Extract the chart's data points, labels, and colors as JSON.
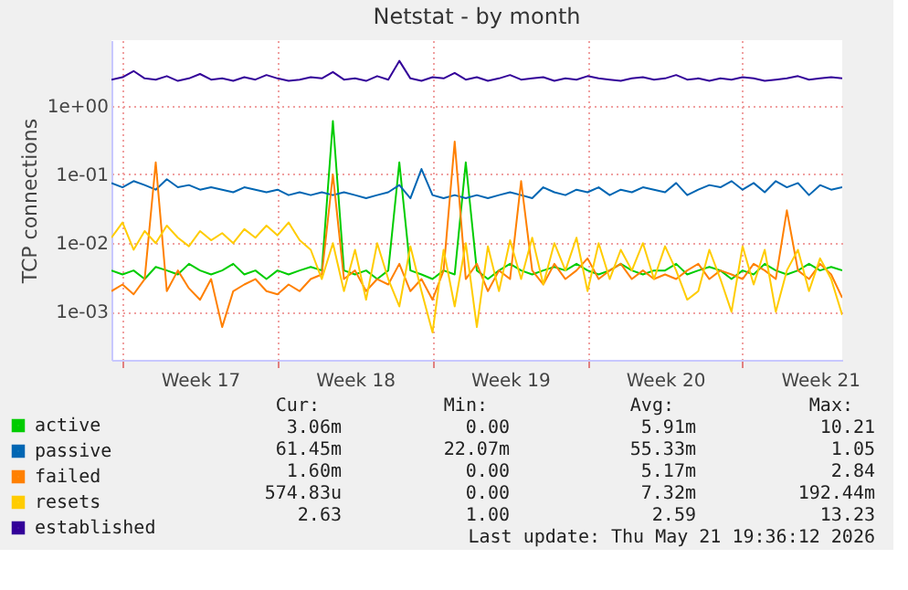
{
  "chart_data": {
    "type": "line",
    "title": "Netstat - by month",
    "ylabel": "TCP connections",
    "log": true,
    "grid": true,
    "legend": "bottom",
    "line_style": "solid",
    "marker": "none",
    "x": [
      "2026-04-19T12:00",
      "2026-04-20T00:00",
      "2026-04-20T12:00",
      "2026-04-21T00:00",
      "2026-04-21T12:00",
      "2026-04-22T00:00",
      "2026-04-22T12:00",
      "2026-04-23T00:00",
      "2026-04-23T12:00",
      "2026-04-24T00:00",
      "2026-04-24T12:00",
      "2026-04-25T00:00",
      "2026-04-25T12:00",
      "2026-04-26T00:00",
      "2026-04-26T12:00",
      "2026-04-27T00:00",
      "2026-04-27T12:00",
      "2026-04-28T00:00",
      "2026-04-28T12:00",
      "2026-04-29T00:00",
      "2026-04-29T12:00",
      "2026-04-30T00:00",
      "2026-04-30T12:00",
      "2026-05-01T00:00",
      "2026-05-01T12:00",
      "2026-05-02T00:00",
      "2026-05-02T12:00",
      "2026-05-03T00:00",
      "2026-05-03T12:00",
      "2026-05-04T00:00",
      "2026-05-04T12:00",
      "2026-05-05T00:00",
      "2026-05-05T12:00",
      "2026-05-06T00:00",
      "2026-05-06T12:00",
      "2026-05-07T00:00",
      "2026-05-07T12:00",
      "2026-05-08T00:00",
      "2026-05-08T12:00",
      "2026-05-09T00:00",
      "2026-05-09T12:00",
      "2026-05-10T00:00",
      "2026-05-10T12:00",
      "2026-05-11T00:00",
      "2026-05-11T12:00",
      "2026-05-12T00:00",
      "2026-05-12T12:00",
      "2026-05-13T00:00",
      "2026-05-13T12:00",
      "2026-05-14T00:00",
      "2026-05-14T12:00",
      "2026-05-15T00:00",
      "2026-05-15T12:00",
      "2026-05-16T00:00",
      "2026-05-16T12:00",
      "2026-05-17T00:00",
      "2026-05-17T12:00",
      "2026-05-18T00:00",
      "2026-05-18T12:00",
      "2026-05-19T00:00",
      "2026-05-19T12:00",
      "2026-05-20T00:00",
      "2026-05-20T12:00",
      "2026-05-21T00:00",
      "2026-05-21T12:00",
      "2026-05-22T00:00",
      "2026-05-22T12:00"
    ],
    "xlim": [
      "2026-04-19T12:00",
      "2026-05-22T12:00"
    ],
    "xticks": [
      {
        "value": "2026-04-20T00:00",
        "label": null
      },
      {
        "value": "2026-04-23T12:00",
        "label": "Week 17"
      },
      {
        "value": "2026-04-27T00:00",
        "label": null
      },
      {
        "value": "2026-04-30T12:00",
        "label": "Week 18"
      },
      {
        "value": "2026-05-04T00:00",
        "label": null
      },
      {
        "value": "2026-05-07T12:00",
        "label": "Week 19"
      },
      {
        "value": "2026-05-11T00:00",
        "label": null
      },
      {
        "value": "2026-05-14T12:00",
        "label": "Week 20"
      },
      {
        "value": "2026-05-18T00:00",
        "label": null
      },
      {
        "value": "2026-05-21T12:00",
        "label": "Week 21"
      }
    ],
    "ylim": [
      0.0002,
      9
    ],
    "yticks": [
      {
        "value": 0.001,
        "label": "1e-03"
      },
      {
        "value": 0.01,
        "label": "1e-02"
      },
      {
        "value": 0.1,
        "label": "1e-01"
      },
      {
        "value": 1,
        "label": "1e+00"
      }
    ],
    "series": [
      {
        "name": "active",
        "color": "#00cc00",
        "values": [
          0.004,
          0.0035,
          0.004,
          0.003,
          0.0045,
          0.004,
          0.0035,
          0.005,
          0.004,
          0.0035,
          0.004,
          0.005,
          0.0035,
          0.004,
          0.003,
          0.004,
          0.0035,
          0.004,
          0.0045,
          0.004,
          0.6,
          0.004,
          0.0035,
          0.004,
          0.003,
          0.004,
          0.15,
          0.004,
          0.0035,
          0.003,
          0.004,
          0.0035,
          0.15,
          0.004,
          0.003,
          0.004,
          0.005,
          0.004,
          0.0035,
          0.004,
          0.0045,
          0.004,
          0.005,
          0.004,
          0.0035,
          0.004,
          0.005,
          0.004,
          0.0035,
          0.004,
          0.004,
          0.005,
          0.0035,
          0.004,
          0.0045,
          0.004,
          0.003,
          0.004,
          0.0035,
          0.005,
          0.004,
          0.0035,
          0.004,
          0.005,
          0.004,
          0.0045,
          0.004
        ]
      },
      {
        "name": "passive",
        "color": "#0066b3",
        "values": [
          0.075,
          0.065,
          0.08,
          0.07,
          0.06,
          0.085,
          0.065,
          0.07,
          0.06,
          0.065,
          0.06,
          0.055,
          0.065,
          0.06,
          0.055,
          0.06,
          0.05,
          0.055,
          0.05,
          0.055,
          0.05,
          0.055,
          0.05,
          0.045,
          0.05,
          0.055,
          0.07,
          0.045,
          0.12,
          0.05,
          0.045,
          0.05,
          0.045,
          0.05,
          0.045,
          0.05,
          0.055,
          0.05,
          0.045,
          0.065,
          0.055,
          0.05,
          0.06,
          0.055,
          0.065,
          0.05,
          0.06,
          0.055,
          0.065,
          0.06,
          0.055,
          0.075,
          0.05,
          0.06,
          0.07,
          0.065,
          0.08,
          0.06,
          0.075,
          0.055,
          0.08,
          0.065,
          0.075,
          0.05,
          0.07,
          0.06,
          0.065
        ]
      },
      {
        "name": "failed",
        "color": "#ff8000",
        "values": [
          0.002,
          0.0025,
          0.0018,
          0.003,
          0.15,
          0.002,
          0.004,
          0.0022,
          0.0015,
          0.003,
          0.0006,
          0.002,
          0.0025,
          0.003,
          0.002,
          0.0018,
          0.0025,
          0.002,
          0.003,
          0.0035,
          0.1,
          0.003,
          0.004,
          0.002,
          0.003,
          0.0025,
          0.005,
          0.002,
          0.003,
          0.0015,
          0.004,
          0.3,
          0.003,
          0.005,
          0.002,
          0.004,
          0.003,
          0.08,
          0.004,
          0.0025,
          0.005,
          0.003,
          0.004,
          0.006,
          0.003,
          0.004,
          0.005,
          0.003,
          0.004,
          0.003,
          0.0035,
          0.003,
          0.004,
          0.005,
          0.003,
          0.004,
          0.0035,
          0.003,
          0.005,
          0.004,
          0.003,
          0.03,
          0.004,
          0.003,
          0.005,
          0.0035,
          0.0016
        ]
      },
      {
        "name": "resets",
        "color": "#ffcc00",
        "values": [
          0.012,
          0.02,
          0.008,
          0.015,
          0.01,
          0.018,
          0.012,
          0.009,
          0.015,
          0.011,
          0.014,
          0.01,
          0.016,
          0.012,
          0.018,
          0.013,
          0.02,
          0.011,
          0.008,
          0.003,
          0.01,
          0.002,
          0.008,
          0.0015,
          0.01,
          0.003,
          0.0012,
          0.009,
          0.002,
          0.0005,
          0.008,
          0.0012,
          0.01,
          0.0006,
          0.009,
          0.002,
          0.011,
          0.003,
          0.012,
          0.0025,
          0.01,
          0.004,
          0.012,
          0.002,
          0.01,
          0.003,
          0.008,
          0.004,
          0.01,
          0.003,
          0.009,
          0.004,
          0.0015,
          0.002,
          0.008,
          0.003,
          0.001,
          0.009,
          0.0025,
          0.008,
          0.001,
          0.004,
          0.008,
          0.002,
          0.006,
          0.003,
          0.0009
        ]
      },
      {
        "name": "established",
        "color": "#330099",
        "values": [
          2.4,
          2.6,
          3.2,
          2.5,
          2.4,
          2.7,
          2.3,
          2.5,
          2.9,
          2.4,
          2.5,
          2.3,
          2.6,
          2.4,
          2.8,
          2.5,
          2.3,
          2.4,
          2.6,
          2.5,
          3.1,
          2.4,
          2.5,
          2.3,
          2.7,
          2.4,
          4.5,
          2.5,
          2.3,
          2.6,
          2.5,
          3.0,
          2.4,
          2.6,
          2.3,
          2.5,
          2.8,
          2.4,
          2.5,
          2.6,
          2.3,
          2.5,
          2.4,
          2.7,
          2.5,
          2.4,
          2.3,
          2.5,
          2.6,
          2.4,
          2.5,
          2.8,
          2.4,
          2.5,
          2.3,
          2.5,
          2.4,
          2.6,
          2.5,
          2.3,
          2.4,
          2.5,
          2.7,
          2.4,
          2.5,
          2.6,
          2.5
        ]
      }
    ],
    "annotations": [
      "Cur:",
      "Min:",
      "Avg:",
      "Max:",
      "3.06m",
      "0.00",
      "5.91m",
      "10.21",
      "61.45m",
      "22.07m",
      "55.33m",
      "1.05",
      "1.60m",
      "0.00",
      "5.17m",
      "2.84",
      "574.83u",
      "0.00",
      "7.32m",
      "192.44m",
      "2.63",
      "1.00",
      "2.59",
      "13.23",
      "Last update: Thu May 21 19:36:12 2026"
    ]
  }
}
